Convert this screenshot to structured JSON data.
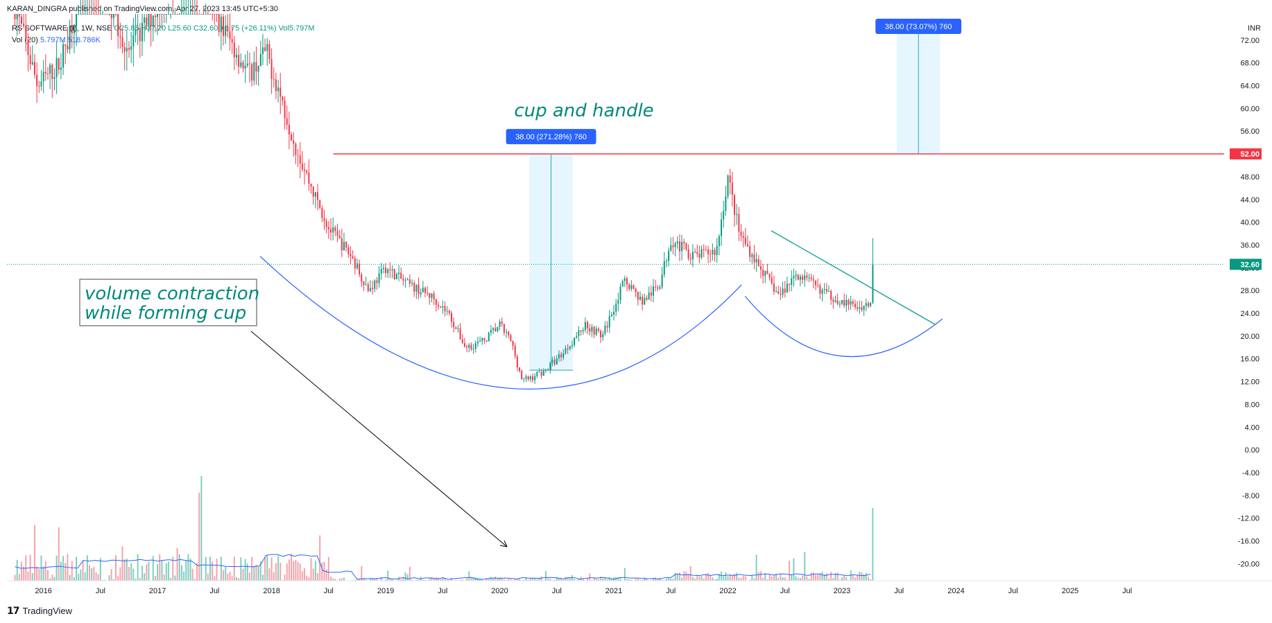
{
  "header": {
    "published": "KARAN_DINGRA published on TradingView.com, Apr 27, 2023 13:45 UTC+5:30",
    "symbol": "RS SOFTWARE (I), 1W, NSE",
    "ohlc": "O25.85 H37.20 L25.60 C32.60 +6.75 (+26.11%) Vol5.797M",
    "volume_legend": "Vol (20)",
    "volume_values": "5.797M 518.786K",
    "currency": "INR"
  },
  "brand": {
    "logo_icon": "tradingview-logo-icon",
    "label": "TradingView"
  },
  "chart_data": {
    "type": "candlestick",
    "y_ticks": [
      "72.00",
      "68.00",
      "64.00",
      "60.00",
      "56.00",
      "52.00",
      "48.00",
      "44.00",
      "40.00",
      "36.00",
      "32.00",
      "28.00",
      "24.00",
      "20.00",
      "16.00",
      "12.00",
      "8.00",
      "4.00",
      "0.00",
      "-4.00",
      "-8.00",
      "-12.00",
      "-16.00",
      "-20.00"
    ],
    "ylim": [
      -23,
      76
    ],
    "x_ticks": [
      "2016",
      "Jul",
      "2017",
      "Jul",
      "2018",
      "Jul",
      "2019",
      "Jul",
      "2020",
      "Jul",
      "2021",
      "Jul",
      "2022",
      "Jul",
      "2023",
      "Jul",
      "2024",
      "Jul",
      "2025",
      "Jul"
    ],
    "x_tick_years": [
      2016.0,
      2016.5,
      2017.0,
      2017.5,
      2018.0,
      2018.5,
      2019.0,
      2019.5,
      2020.0,
      2020.5,
      2021.0,
      2021.5,
      2022.0,
      2022.5,
      2023.0,
      2023.5,
      2024.0,
      2024.5,
      2025.0,
      2025.5
    ],
    "xlim": [
      2015.68,
      2026.35
    ],
    "approximate_close_path": [
      [
        2015.75,
        78
      ],
      [
        2015.95,
        64
      ],
      [
        2016.15,
        68
      ],
      [
        2016.4,
        86
      ],
      [
        2016.75,
        70
      ],
      [
        2017.0,
        78
      ],
      [
        2017.3,
        85
      ],
      [
        2017.55,
        75
      ],
      [
        2017.8,
        66
      ],
      [
        2017.95,
        70
      ],
      [
        2018.05,
        64
      ],
      [
        2018.2,
        54
      ],
      [
        2018.35,
        46
      ],
      [
        2018.5,
        39
      ],
      [
        2018.7,
        34
      ],
      [
        2018.85,
        28
      ],
      [
        2019.0,
        32
      ],
      [
        2019.2,
        29
      ],
      [
        2019.4,
        27
      ],
      [
        2019.55,
        24
      ],
      [
        2019.7,
        18
      ],
      [
        2019.85,
        19
      ],
      [
        2020.0,
        22
      ],
      [
        2020.1,
        19
      ],
      [
        2020.2,
        12
      ],
      [
        2020.4,
        14
      ],
      [
        2020.55,
        17
      ],
      [
        2020.75,
        22
      ],
      [
        2020.9,
        20
      ],
      [
        2021.0,
        25
      ],
      [
        2021.1,
        30
      ],
      [
        2021.25,
        26
      ],
      [
        2021.4,
        29
      ],
      [
        2021.5,
        37
      ],
      [
        2021.7,
        34
      ],
      [
        2021.9,
        35
      ],
      [
        2022.0,
        48
      ],
      [
        2022.1,
        38
      ],
      [
        2022.25,
        33
      ],
      [
        2022.45,
        27
      ],
      [
        2022.6,
        31
      ],
      [
        2022.75,
        29
      ],
      [
        2022.9,
        27
      ],
      [
        2023.0,
        26
      ],
      [
        2023.15,
        25
      ],
      [
        2023.25,
        25.85
      ],
      [
        2023.27,
        32.6
      ]
    ],
    "last_price": 32.6,
    "last_price_label": "32.60",
    "resistance": 52.0,
    "resistance_label": "52.00",
    "resistance_from": 2018.54,
    "measure_boxes": [
      {
        "label": "38.00 (271.28%) 760",
        "x_start": 2020.26,
        "x_end": 2020.64,
        "y_low": 14,
        "y_high": 52
      },
      {
        "label": "38.00 (73.07%) 760",
        "x_start": 2023.48,
        "x_end": 2023.86,
        "y_low": 52,
        "y_high": 90
      }
    ],
    "trendline": {
      "x1": 2022.38,
      "y1": 38.5,
      "x2": 2023.82,
      "y2": 22
    },
    "annotations": {
      "cup_title": "cup and handle",
      "volume_note": [
        "volume contraction",
        "while forming cup"
      ]
    },
    "volume": {
      "ma_period": 20,
      "last_volume": "5.797M",
      "ma_value": "518.786K"
    },
    "colors": {
      "up": "#089981",
      "down": "#f23645",
      "resistance": "#f23645",
      "curve": "#2962ff",
      "trend": "#26a69a",
      "measure": "#2962ff",
      "text_annotation": "#00897b"
    }
  }
}
